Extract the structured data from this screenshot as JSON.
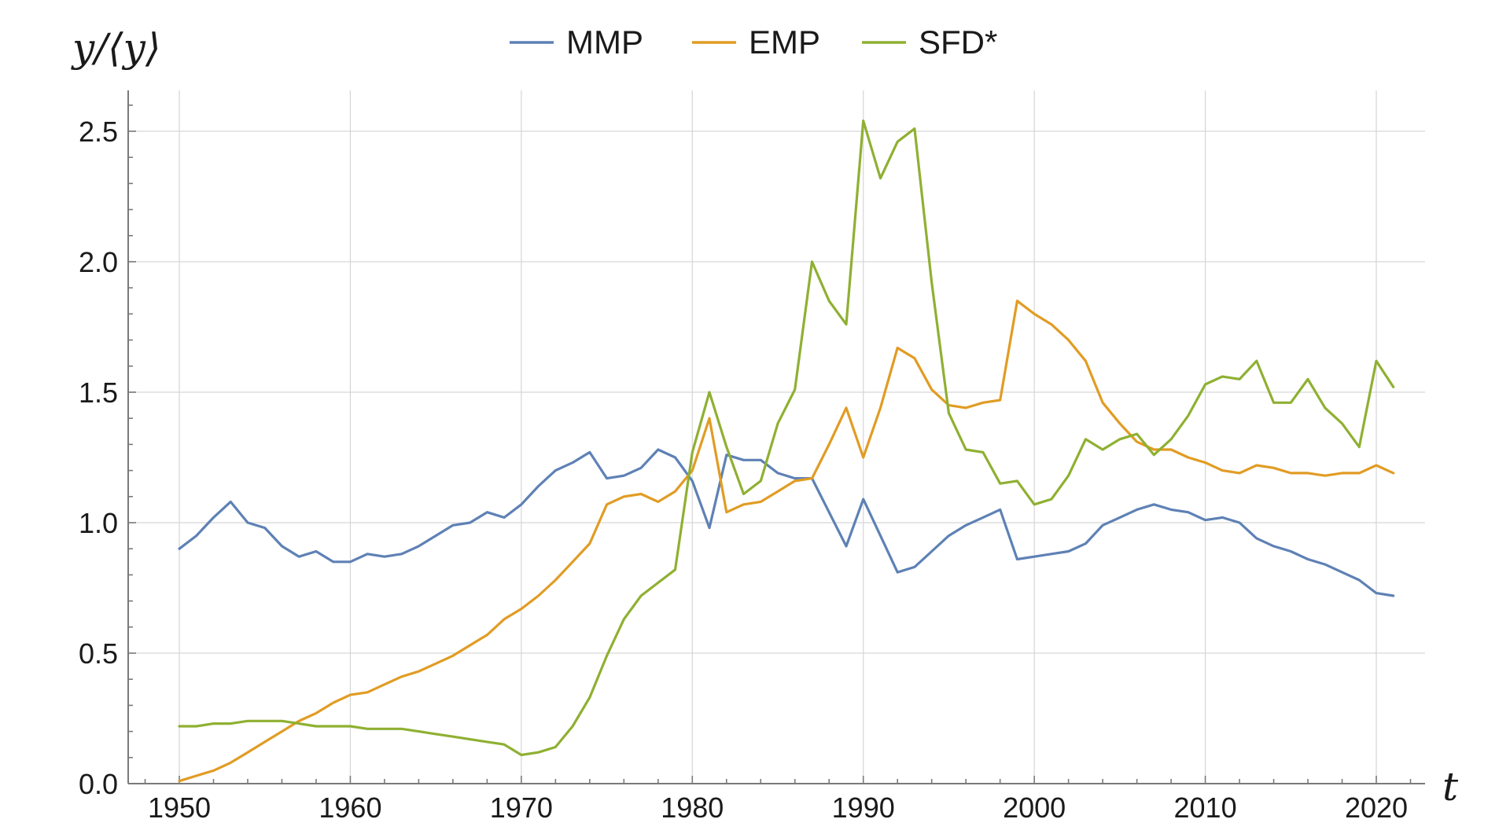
{
  "chart_data": {
    "type": "line",
    "ylabel": "y/⟨y⟩",
    "xlabel": "t",
    "xlim": [
      1947,
      2023
    ],
    "ylim": [
      0,
      2.6
    ],
    "xticks": [
      1950,
      1960,
      1970,
      1980,
      1990,
      2000,
      2010,
      2020
    ],
    "yticks": [
      0.0,
      0.5,
      1.0,
      1.5,
      2.0,
      2.5
    ],
    "ytick_labels": [
      "0.0",
      "0.5",
      "1.0",
      "1.5",
      "2.0",
      "2.5"
    ],
    "grid": true,
    "legend_position": "top-center",
    "x": [
      1950,
      1951,
      1952,
      1953,
      1954,
      1955,
      1956,
      1957,
      1958,
      1959,
      1960,
      1961,
      1962,
      1963,
      1964,
      1965,
      1966,
      1967,
      1968,
      1969,
      1970,
      1971,
      1972,
      1973,
      1974,
      1975,
      1976,
      1977,
      1978,
      1979,
      1980,
      1981,
      1982,
      1983,
      1984,
      1985,
      1986,
      1987,
      1988,
      1989,
      1990,
      1991,
      1992,
      1993,
      1994,
      1995,
      1996,
      1997,
      1998,
      1999,
      2000,
      2001,
      2002,
      2003,
      2004,
      2005,
      2006,
      2007,
      2008,
      2009,
      2010,
      2011,
      2012,
      2013,
      2014,
      2015,
      2016,
      2017,
      2018,
      2019,
      2020,
      2021
    ],
    "series": [
      {
        "name": "MMP",
        "color": "#5e81b5",
        "values": [
          0.9,
          0.95,
          1.02,
          1.08,
          1.0,
          0.98,
          0.91,
          0.87,
          0.89,
          0.85,
          0.85,
          0.88,
          0.87,
          0.88,
          0.91,
          0.95,
          0.99,
          1.0,
          1.04,
          1.02,
          1.07,
          1.14,
          1.2,
          1.23,
          1.27,
          1.17,
          1.18,
          1.21,
          1.28,
          1.25,
          1.16,
          0.98,
          1.26,
          1.24,
          1.24,
          1.19,
          1.17,
          1.17,
          1.04,
          0.91,
          1.09,
          0.95,
          0.81,
          0.83,
          0.89,
          0.95,
          0.99,
          1.02,
          1.05,
          0.86,
          0.87,
          0.88,
          0.89,
          0.92,
          0.99,
          1.02,
          1.05,
          1.07,
          1.05,
          1.04,
          1.01,
          1.02,
          1.0,
          0.94,
          0.91,
          0.89,
          0.86,
          0.84,
          0.81,
          0.78,
          0.73,
          0.72
        ]
      },
      {
        "name": "EMP",
        "color": "#e19c24",
        "values": [
          0.01,
          0.03,
          0.05,
          0.08,
          0.12,
          0.16,
          0.2,
          0.24,
          0.27,
          0.31,
          0.34,
          0.35,
          0.38,
          0.41,
          0.43,
          0.46,
          0.49,
          0.53,
          0.57,
          0.63,
          0.67,
          0.72,
          0.78,
          0.85,
          0.92,
          1.07,
          1.1,
          1.11,
          1.08,
          1.12,
          1.2,
          1.4,
          1.04,
          1.07,
          1.08,
          1.12,
          1.16,
          1.17,
          1.3,
          1.44,
          1.25,
          1.44,
          1.67,
          1.63,
          1.51,
          1.45,
          1.44,
          1.46,
          1.47,
          1.85,
          1.8,
          1.76,
          1.7,
          1.62,
          1.46,
          1.38,
          1.31,
          1.28,
          1.28,
          1.25,
          1.23,
          1.2,
          1.19,
          1.22,
          1.21,
          1.19,
          1.19,
          1.18,
          1.19,
          1.19,
          1.22,
          1.19
        ]
      },
      {
        "name": "SFD*",
        "color": "#8fb032",
        "values": [
          0.22,
          0.22,
          0.23,
          0.23,
          0.24,
          0.24,
          0.24,
          0.23,
          0.22,
          0.22,
          0.22,
          0.21,
          0.21,
          0.21,
          0.2,
          0.19,
          0.18,
          0.17,
          0.16,
          0.15,
          0.11,
          0.12,
          0.14,
          0.22,
          0.33,
          0.49,
          0.63,
          0.72,
          0.77,
          0.82,
          1.27,
          1.5,
          1.29,
          1.11,
          1.16,
          1.38,
          1.51,
          2.0,
          1.85,
          1.76,
          2.54,
          2.32,
          2.46,
          2.51,
          1.92,
          1.42,
          1.28,
          1.27,
          1.15,
          1.16,
          1.07,
          1.09,
          1.18,
          1.32,
          1.28,
          1.32,
          1.34,
          1.26,
          1.32,
          1.41,
          1.53,
          1.56,
          1.55,
          1.62,
          1.46,
          1.46,
          1.55,
          1.44,
          1.38,
          1.29,
          1.62,
          1.52
        ]
      }
    ]
  }
}
